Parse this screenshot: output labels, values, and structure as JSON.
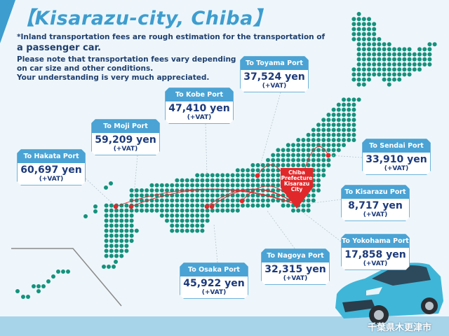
{
  "title": "【Kisarazu-city, Chiba】",
  "notes": [
    "*Inland transportation fees are rough estimation for the transportation of",
    "a passenger car.",
    "Please note that transportation fees vary depending",
    "on car size and other conditions.",
    "Your understanding is very much appreciated."
  ],
  "pin_label": [
    "Chiba",
    "Prefecture",
    "Kisarazu",
    "City"
  ],
  "city_name_jp": "千葉県木更津市",
  "ports": [
    {
      "name": "To Hakata Port",
      "fee": "60,697 yen",
      "vat": "(+VAT)"
    },
    {
      "name": "To Moji Port",
      "fee": "59,209 yen",
      "vat": "(+VAT)"
    },
    {
      "name": "To Kobe Port",
      "fee": "47,410 yen",
      "vat": "(+VAT)"
    },
    {
      "name": "To Toyama Port",
      "fee": "37,524 yen",
      "vat": "(+VAT)"
    },
    {
      "name": "To Sendai Port",
      "fee": "33,910 yen",
      "vat": "(+VAT)"
    },
    {
      "name": "To Kisarazu Port",
      "fee": "8,717 yen",
      "vat": "(+VAT)"
    },
    {
      "name": "To Yokohama Port",
      "fee": "17,858 yen",
      "vat": "(+VAT)"
    },
    {
      "name": "To Nagoya Port",
      "fee": "32,315 yen",
      "vat": "(+VAT)"
    },
    {
      "name": "To Osaka Port",
      "fee": "45,922 yen",
      "vat": "(+VAT)"
    }
  ],
  "colors": {
    "accent": "#3d9dcf",
    "fee_text": "#1c3a7a",
    "map_dots": "#14927c",
    "route": "#e0282a",
    "car": "#3fb6d8"
  }
}
